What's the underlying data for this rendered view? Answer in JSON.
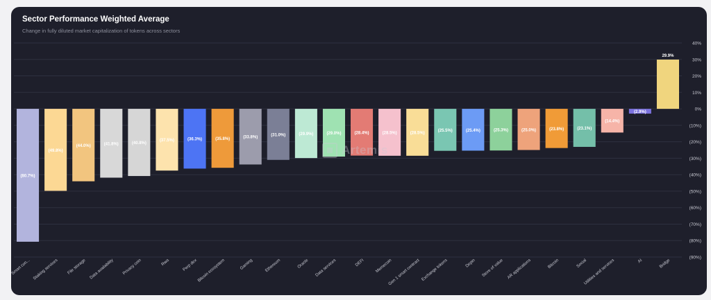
{
  "header": {
    "title": "Sector Performance Weighted Average",
    "subtitle": "Change in fully diluted market capitalization of tokens across sectors"
  },
  "watermark": {
    "text": "Artemis"
  },
  "chart_data": {
    "type": "bar",
    "title": "Sector Performance Weighted Average",
    "subtitle": "Change in fully diluted market capitalization of tokens across sectors",
    "xlabel": "",
    "ylabel": "",
    "ylim": [
      -90,
      40
    ],
    "grid": true,
    "y_ticks": [
      {
        "value": 40,
        "label": "40%"
      },
      {
        "value": 30,
        "label": "30%"
      },
      {
        "value": 20,
        "label": "20%"
      },
      {
        "value": 10,
        "label": "10%"
      },
      {
        "value": 0,
        "label": "0%"
      },
      {
        "value": -10,
        "label": "(10%)"
      },
      {
        "value": -20,
        "label": "(20%)"
      },
      {
        "value": -30,
        "label": "(30%)"
      },
      {
        "value": -40,
        "label": "(40%)"
      },
      {
        "value": -50,
        "label": "(50%)"
      },
      {
        "value": -60,
        "label": "(60%)"
      },
      {
        "value": -70,
        "label": "(70%)"
      },
      {
        "value": -80,
        "label": "(80%)"
      },
      {
        "value": -90,
        "label": "(90%)"
      }
    ],
    "categories": [
      "Smart con...",
      "Staking services",
      "File storage",
      "Data availability",
      "Privacy coin",
      "Rwa",
      "Perp dex",
      "Bitcoin ecosystem",
      "Gaming",
      "Ethereum",
      "Oracle",
      "Data services",
      "DEFI",
      "Memecoin",
      "Gen 1 smart contract",
      "Exchange tokens",
      "Depin",
      "Store of value",
      "AR applications",
      "Bitcoin",
      "Social",
      "Utilities and services",
      "AI",
      "Bridge"
    ],
    "values": [
      -80.7,
      -49.8,
      -44.0,
      -41.8,
      -40.8,
      -37.5,
      -36.3,
      -35.8,
      -33.8,
      -31.0,
      -29.9,
      -29.0,
      -28.4,
      -28.5,
      -28.5,
      -25.5,
      -25.4,
      -25.3,
      -25.0,
      -23.8,
      -23.1,
      -14.4,
      -2.9,
      29.9
    ],
    "data_labels": [
      "(80.7%)",
      "(49.8%)",
      "(44.0%)",
      "(41.8%)",
      "(40.8%)",
      "(37.5%)",
      "(36.3%)",
      "(35.8%)",
      "(33.8%)",
      "(31.0%)",
      "(29.9%)",
      "(29.0%)",
      "(28.4%)",
      "(28.5%)",
      "(28.5%)",
      "(25.5%)",
      "(25.4%)",
      "(25.3%)",
      "(25.0%)",
      "(23.8%)",
      "(23.1%)",
      "(14.4%)",
      "(2.9%)",
      "29.9%"
    ],
    "colors": [
      "#b2b4dd",
      "#fcd894",
      "#f2c57f",
      "#d8d8d8",
      "#d6d6d6",
      "#fde3ad",
      "#4d74f4",
      "#ee9a3a",
      "#9c9cac",
      "#7b7f96",
      "#bde9d4",
      "#9fe2b2",
      "#e37b74",
      "#f5c1cd",
      "#f9dd97",
      "#7ac6b2",
      "#6c9bf5",
      "#8dd19b",
      "#eea37b",
      "#f09b37",
      "#74bfa9",
      "#f6b4a8",
      "#7b72de",
      "#f0d57e"
    ]
  }
}
